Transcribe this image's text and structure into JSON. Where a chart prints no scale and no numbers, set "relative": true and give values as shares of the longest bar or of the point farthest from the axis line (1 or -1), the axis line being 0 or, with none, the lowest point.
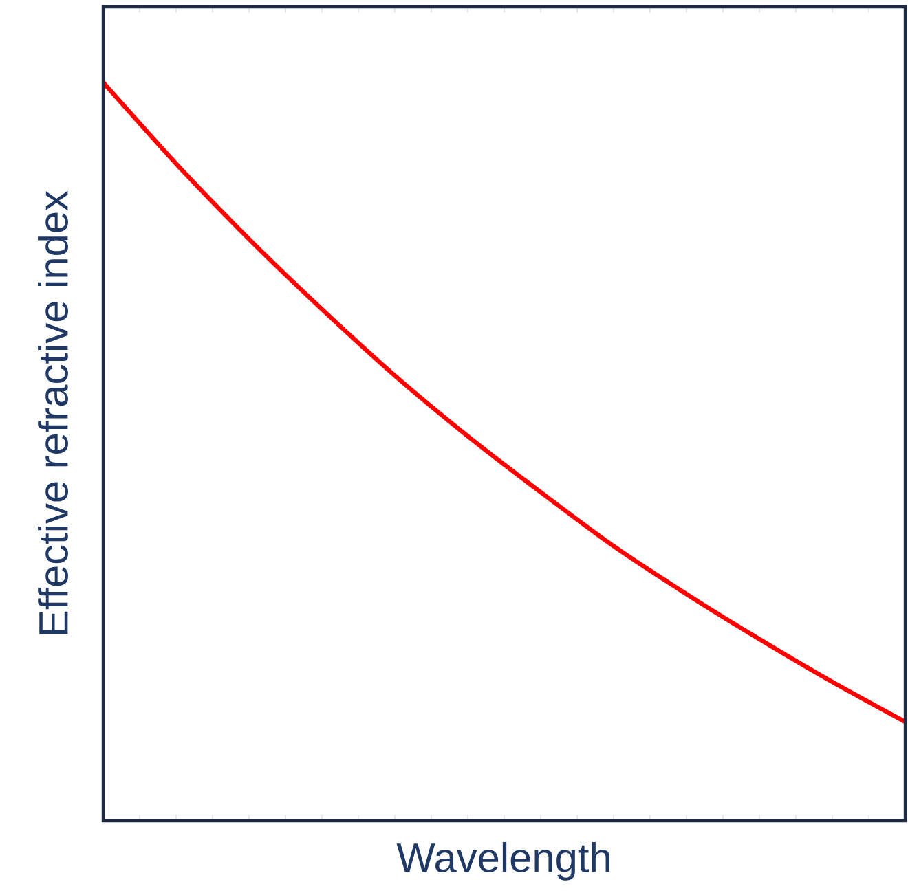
{
  "chart_data": {
    "type": "line",
    "xlabel": "Wavelength",
    "ylabel": "Effective refractive index",
    "relative": true,
    "categories": [
      null,
      null,
      null,
      null,
      null,
      null,
      null,
      null,
      null,
      null,
      null,
      null
    ],
    "series": [
      {
        "color": "#ff0000",
        "values": [
          1.0,
          0.89,
          0.788,
          0.693,
          0.603,
          0.521,
          0.445,
          0.372,
          0.307,
          0.246,
          0.188,
          0.134
        ]
      }
    ]
  }
}
